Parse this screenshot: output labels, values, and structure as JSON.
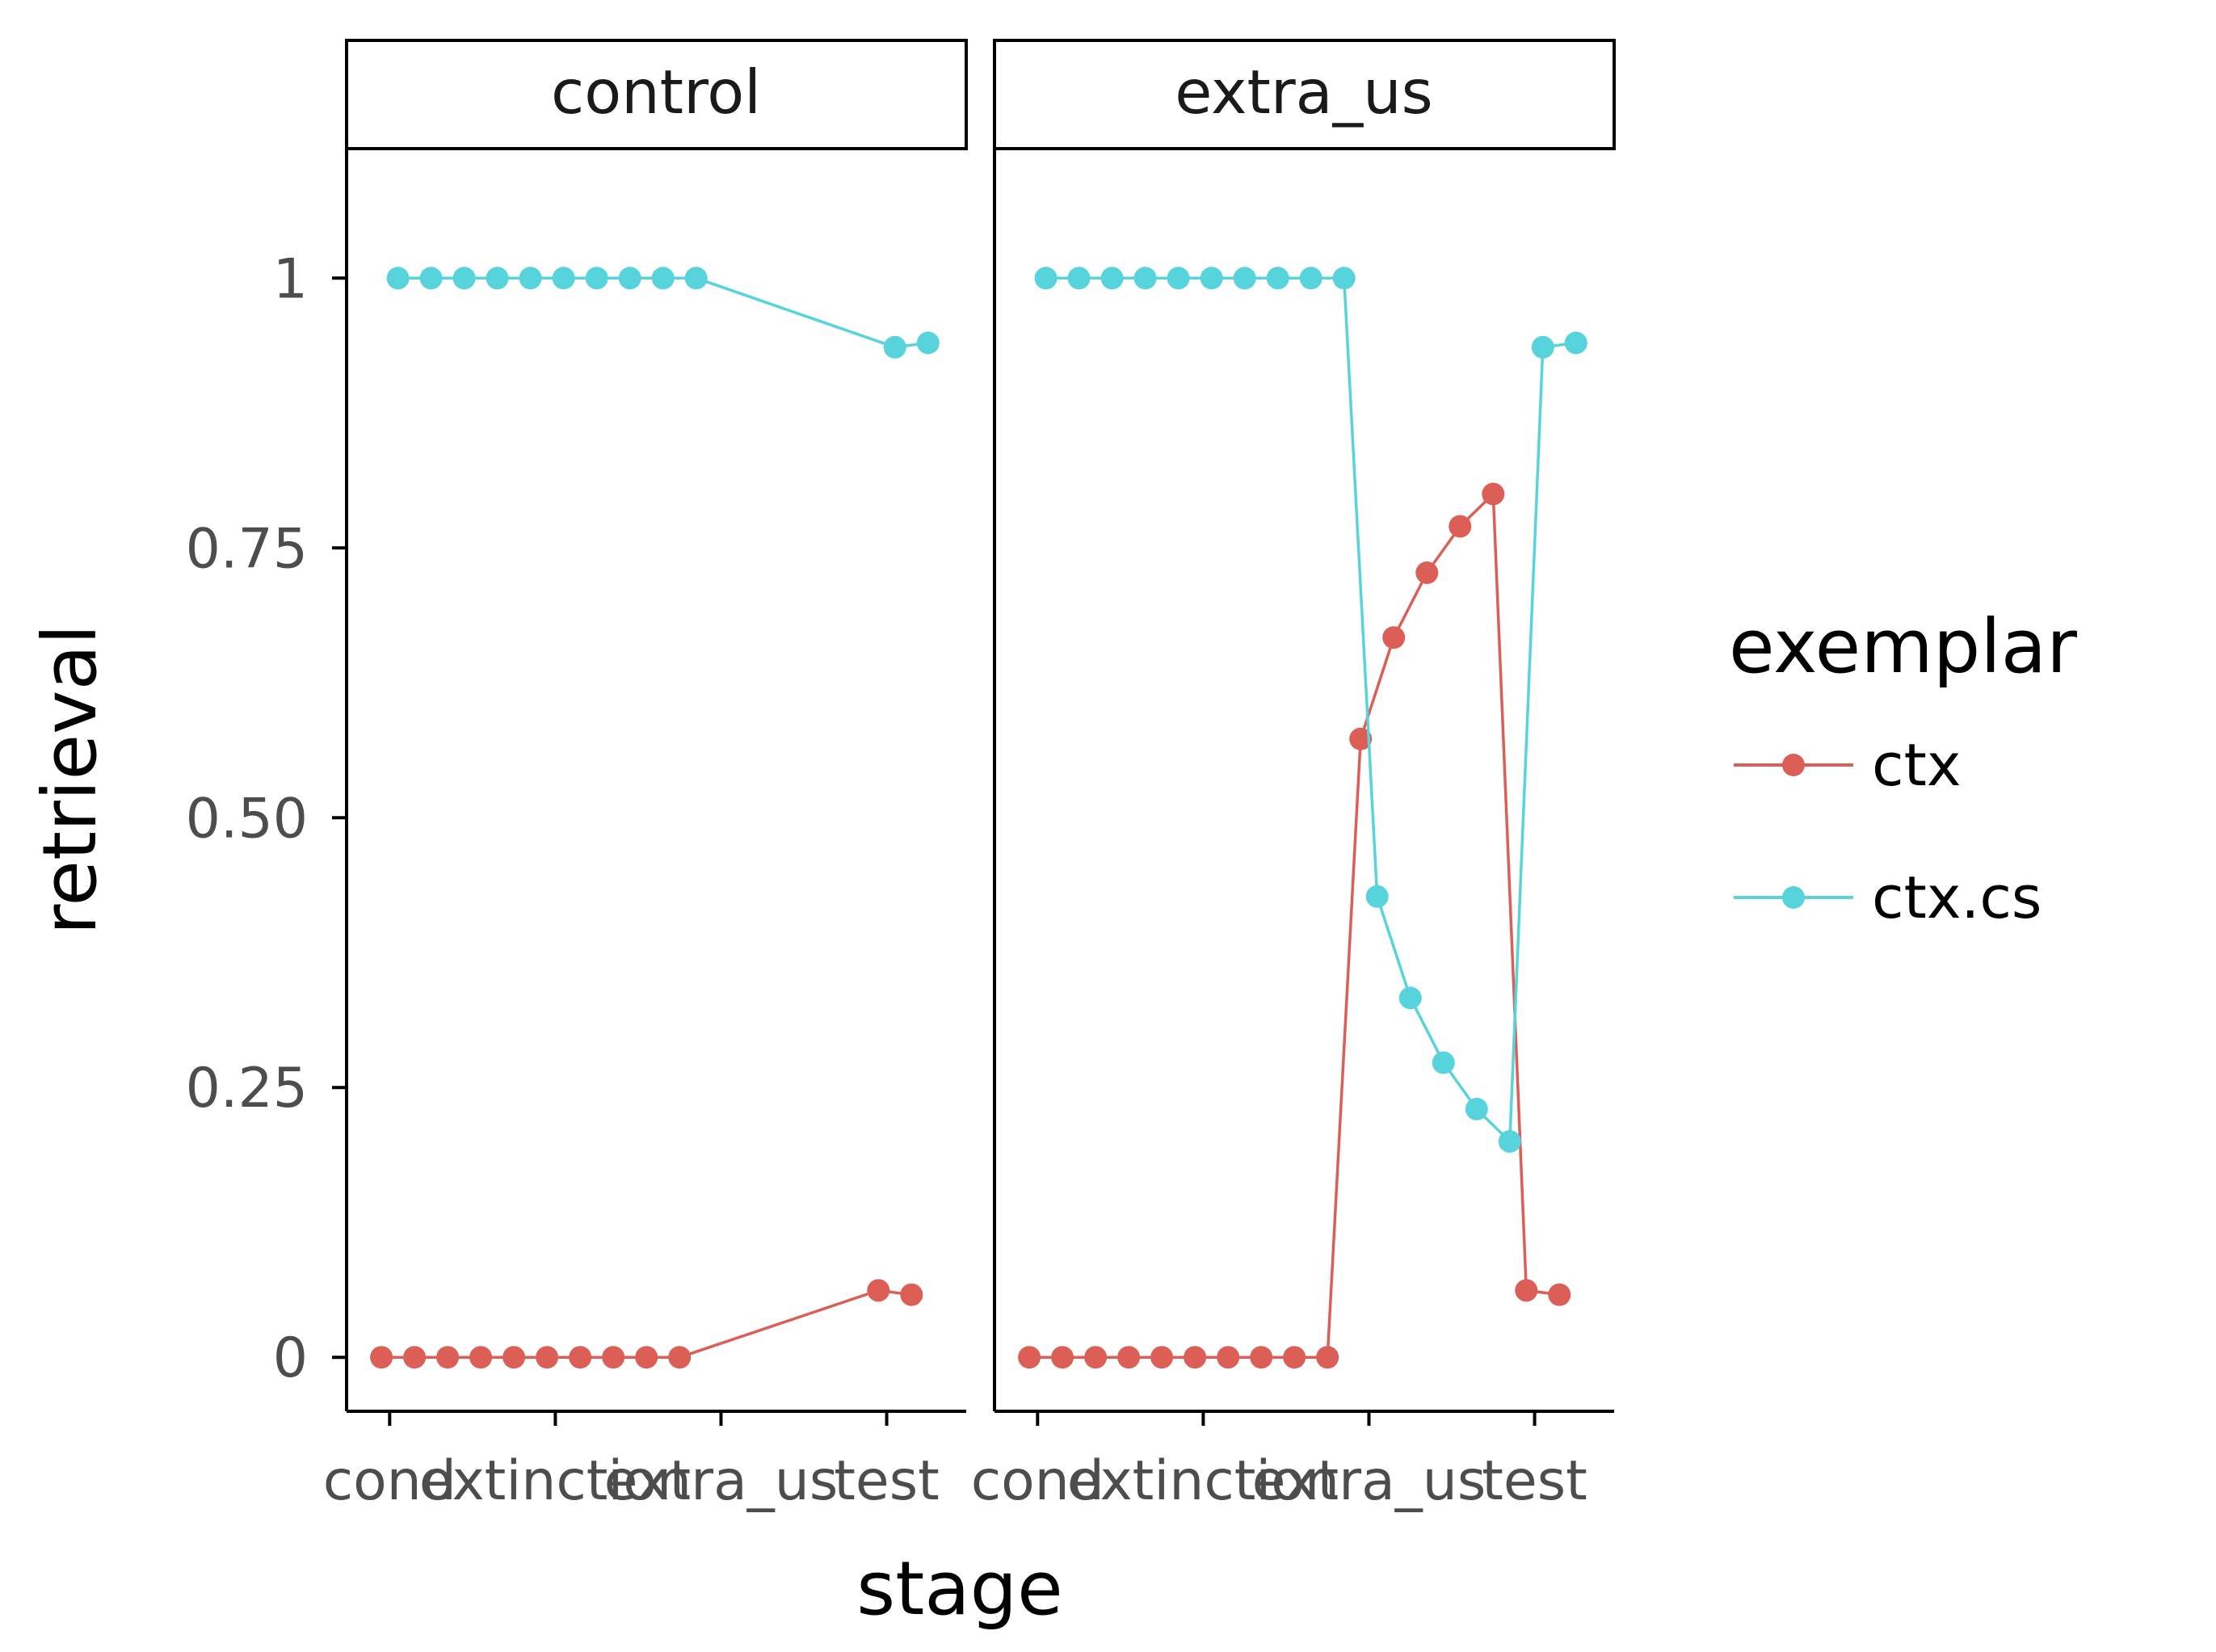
{
  "chart_data": {
    "type": "line",
    "xlabel": "stage",
    "ylabel": "retrieval",
    "ylim": [
      -0.05,
      1.12
    ],
    "y_ticks": [
      {
        "value": 0,
        "label": "0"
      },
      {
        "value": 0.25,
        "label": "0.25"
      },
      {
        "value": 0.5,
        "label": "0.50"
      },
      {
        "value": 0.75,
        "label": "0.75"
      },
      {
        "value": 1,
        "label": "1"
      }
    ],
    "x_ticks": [
      {
        "value": 1,
        "label": "cond"
      },
      {
        "value": 2,
        "label": "extinction"
      },
      {
        "value": 3,
        "label": "extra_us"
      },
      {
        "value": 4,
        "label": "test"
      }
    ],
    "xlim": [
      0.74,
      4.48
    ],
    "legend": {
      "title": "exemplar",
      "position": "right",
      "entries": [
        {
          "label": "ctx",
          "color": "#DB5F57"
        },
        {
          "label": "ctx.cs",
          "color": "#57D3DB"
        }
      ]
    },
    "grid": false,
    "panels": [
      {
        "label": "control",
        "series": [
          {
            "name": "ctx",
            "color": "#DB5F57",
            "x": [
              0.95,
              1.15,
              1.35,
              1.55,
              1.75,
              1.95,
              2.15,
              2.35,
              2.55,
              2.75,
              3.95,
              4.15
            ],
            "y": [
              0,
              0,
              0,
              0,
              0,
              0,
              0,
              0,
              0,
              0,
              0.062,
              0.058
            ]
          },
          {
            "name": "ctx.cs",
            "color": "#57D3DB",
            "x": [
              1.05,
              1.25,
              1.45,
              1.65,
              1.85,
              2.05,
              2.25,
              2.45,
              2.65,
              2.85,
              4.05,
              4.25
            ],
            "y": [
              1,
              1,
              1,
              1,
              1,
              1,
              1,
              1,
              1,
              1,
              0.936,
              0.94
            ]
          }
        ]
      },
      {
        "label": "extra_us",
        "series": [
          {
            "name": "ctx",
            "color": "#DB5F57",
            "x": [
              0.95,
              1.15,
              1.35,
              1.55,
              1.75,
              1.95,
              2.15,
              2.35,
              2.55,
              2.75,
              2.95,
              3.15,
              3.35,
              3.55,
              3.75,
              3.95,
              4.15
            ],
            "y": [
              0,
              0,
              0,
              0,
              0,
              0,
              0,
              0,
              0,
              0,
              0.573,
              0.667,
              0.727,
              0.77,
              0.8,
              0.062,
              0.058
            ]
          },
          {
            "name": "ctx.cs",
            "color": "#57D3DB",
            "x": [
              1.05,
              1.25,
              1.45,
              1.65,
              1.85,
              2.05,
              2.25,
              2.45,
              2.65,
              2.85,
              3.05,
              3.25,
              3.45,
              3.65,
              3.85,
              4.05,
              4.25
            ],
            "y": [
              1,
              1,
              1,
              1,
              1,
              1,
              1,
              1,
              1,
              1,
              0.427,
              0.333,
              0.273,
              0.23,
              0.2,
              0.936,
              0.94
            ]
          }
        ]
      }
    ]
  }
}
